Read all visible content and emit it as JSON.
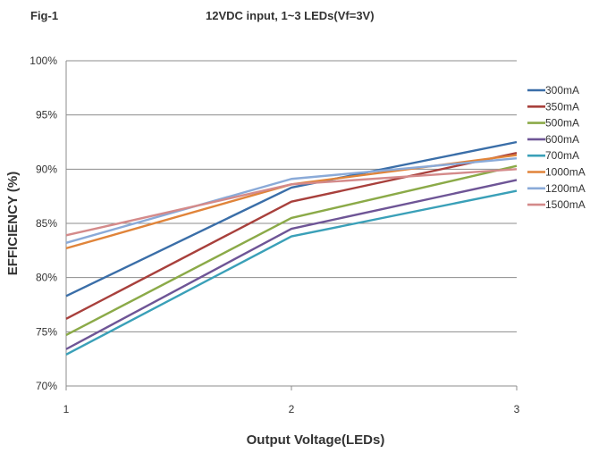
{
  "figure_label": "Fig-1",
  "chart_data": {
    "type": "line",
    "title": "12VDC input, 1~3 LEDs(Vf=3V)",
    "xlabel": "Output Voltage(LEDs)",
    "ylabel": "EFFICIENCY (%)",
    "x": [
      1,
      2,
      3
    ],
    "x_ticks": [
      "1",
      "2",
      "3"
    ],
    "ylim": [
      70,
      100
    ],
    "y_ticks": [
      70,
      75,
      80,
      85,
      90,
      95,
      100
    ],
    "y_tick_labels": [
      "70%",
      "75%",
      "80%",
      "85%",
      "90%",
      "95%",
      "100%"
    ],
    "grid": true,
    "legend_position": "right",
    "series": [
      {
        "name": "300mA",
        "color": "#3A6EA8",
        "values": [
          78.3,
          88.3,
          92.5
        ]
      },
      {
        "name": "350mA",
        "color": "#A8403C",
        "values": [
          76.2,
          87.0,
          91.5
        ]
      },
      {
        "name": "500mA",
        "color": "#8BAA48",
        "values": [
          74.7,
          85.5,
          90.3
        ]
      },
      {
        "name": "600mA",
        "color": "#6E5596",
        "values": [
          73.4,
          84.5,
          89.0
        ]
      },
      {
        "name": "700mA",
        "color": "#3AA0B8",
        "values": [
          72.9,
          83.8,
          88.0
        ]
      },
      {
        "name": "1000mA",
        "color": "#E0843A",
        "values": [
          82.7,
          88.6,
          91.3
        ]
      },
      {
        "name": "1200mA",
        "color": "#8AAAD8",
        "values": [
          83.2,
          89.1,
          91.0
        ]
      },
      {
        "name": "1500mA",
        "color": "#D48A8A",
        "values": [
          83.9,
          88.6,
          90.0
        ]
      }
    ]
  }
}
